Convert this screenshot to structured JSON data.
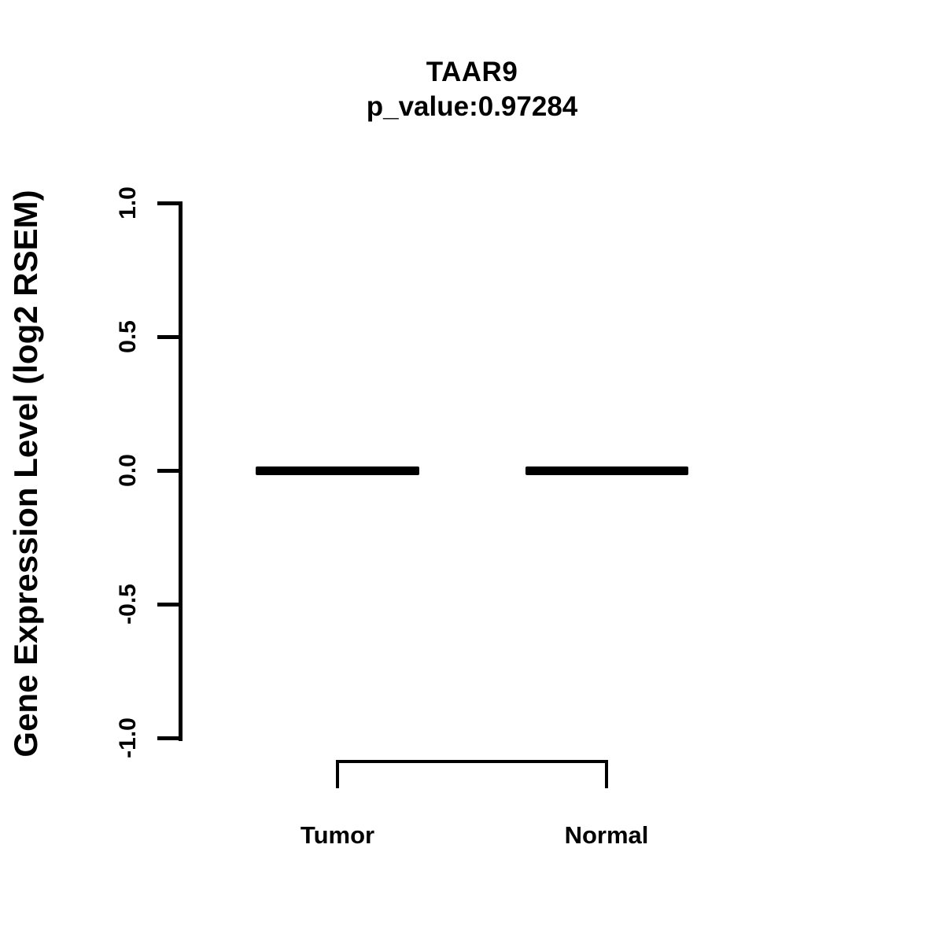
{
  "header": {
    "title": "TAAR9",
    "subtitle": "p_value:0.97284"
  },
  "colors": {
    "foreground": "#000000",
    "background": "#ffffff"
  },
  "chart_data": {
    "type": "boxplot",
    "title": "TAAR9",
    "subtitle": "p_value:0.97284",
    "p_value": 0.97284,
    "xlabel": "",
    "ylabel": "Gene Expression Level (log2 RSEM)",
    "ylim": [
      -1.0,
      1.0
    ],
    "ytick_values": [
      1.0,
      0.5,
      0.0,
      -0.5,
      -1.0
    ],
    "ytick_labels": [
      "1.0",
      "0.5",
      "0.0",
      "-0.5",
      "-1.0"
    ],
    "categories": [
      "Tumor",
      "Normal"
    ],
    "series": [
      {
        "name": "Tumor",
        "min": 0.0,
        "q1": 0.0,
        "median": 0.0,
        "q3": 0.0,
        "max": 0.0
      },
      {
        "name": "Normal",
        "min": 0.0,
        "q1": 0.0,
        "median": 0.0,
        "q3": 0.0,
        "max": 0.0
      }
    ],
    "annotations": [
      {
        "type": "comparison-bracket",
        "from": "Tumor",
        "to": "Normal"
      }
    ],
    "grid": false,
    "legend": "none"
  }
}
